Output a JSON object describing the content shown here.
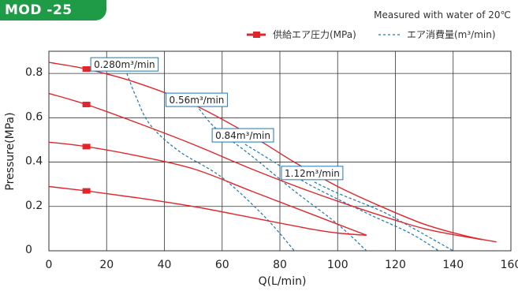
{
  "badge": "MOD -25",
  "note": "Measured with water of 20℃",
  "legend": {
    "pressure": "供給エア圧力(MPa)",
    "air": "エア消費量(m³/min)"
  },
  "colors": {
    "pressure": "#e0262b",
    "air": "#1a78b4",
    "badge": "#1f9a46",
    "grid": "#333333"
  },
  "chart_data": {
    "type": "line",
    "xlabel": "Q(L/min)",
    "ylabel": "Pressure(MPa)",
    "xlim": [
      0,
      160
    ],
    "ylim": [
      0,
      0.9
    ],
    "x_ticks": [
      "0",
      "20",
      "40",
      "60",
      "80",
      "100",
      "120",
      "140",
      "160"
    ],
    "y_ticks": [
      "0",
      "0.2",
      "0.4",
      "0.6",
      "0.8"
    ],
    "grid": true,
    "legend_position": "top-right",
    "pressure_series": [
      {
        "supply_marker": [
          13,
          0.82
        ],
        "points": [
          [
            0,
            0.85
          ],
          [
            13,
            0.82
          ],
          [
            30,
            0.76
          ],
          [
            50,
            0.66
          ],
          [
            70,
            0.52
          ],
          [
            85,
            0.4
          ],
          [
            100,
            0.29
          ],
          [
            115,
            0.2
          ],
          [
            130,
            0.12
          ],
          [
            145,
            0.065
          ],
          [
            155,
            0.04
          ]
        ]
      },
      {
        "supply_marker": [
          13,
          0.66
        ],
        "points": [
          [
            0,
            0.71
          ],
          [
            13,
            0.66
          ],
          [
            30,
            0.58
          ],
          [
            50,
            0.48
          ],
          [
            70,
            0.37
          ],
          [
            90,
            0.27
          ],
          [
            110,
            0.18
          ],
          [
            130,
            0.1
          ],
          [
            150,
            0.05
          ]
        ]
      },
      {
        "supply_marker": [
          13,
          0.47
        ],
        "points": [
          [
            0,
            0.49
          ],
          [
            13,
            0.47
          ],
          [
            30,
            0.43
          ],
          [
            50,
            0.37
          ],
          [
            70,
            0.27
          ],
          [
            90,
            0.17
          ],
          [
            100,
            0.12
          ],
          [
            110,
            0.07
          ]
        ]
      },
      {
        "supply_marker": [
          13,
          0.27
        ],
        "points": [
          [
            0,
            0.29
          ],
          [
            13,
            0.27
          ],
          [
            30,
            0.24
          ],
          [
            50,
            0.2
          ],
          [
            70,
            0.15
          ],
          [
            90,
            0.1
          ],
          [
            100,
            0.08
          ],
          [
            110,
            0.07
          ]
        ]
      }
    ],
    "air_consumption_series": [
      {
        "label": "0.280m³/min",
        "points": [
          [
            27,
            0.8
          ],
          [
            30,
            0.7
          ],
          [
            35,
            0.57
          ],
          [
            45,
            0.45
          ],
          [
            60,
            0.33
          ],
          [
            75,
            0.15
          ],
          [
            85,
            0.0
          ]
        ]
      },
      {
        "label": "0.56m³/min",
        "points": [
          [
            52,
            0.64
          ],
          [
            58,
            0.55
          ],
          [
            70,
            0.43
          ],
          [
            85,
            0.27
          ],
          [
            100,
            0.12
          ],
          [
            110,
            0.0
          ]
        ]
      },
      {
        "label": "0.84m³/min",
        "points": [
          [
            68,
            0.48
          ],
          [
            78,
            0.4
          ],
          [
            90,
            0.3
          ],
          [
            110,
            0.17
          ],
          [
            125,
            0.08
          ],
          [
            135,
            0.0
          ]
        ]
      },
      {
        "label": "1.12m³/min",
        "points": [
          [
            92,
            0.31
          ],
          [
            100,
            0.26
          ],
          [
            115,
            0.18
          ],
          [
            125,
            0.11
          ],
          [
            140,
            0.0
          ]
        ]
      }
    ]
  }
}
